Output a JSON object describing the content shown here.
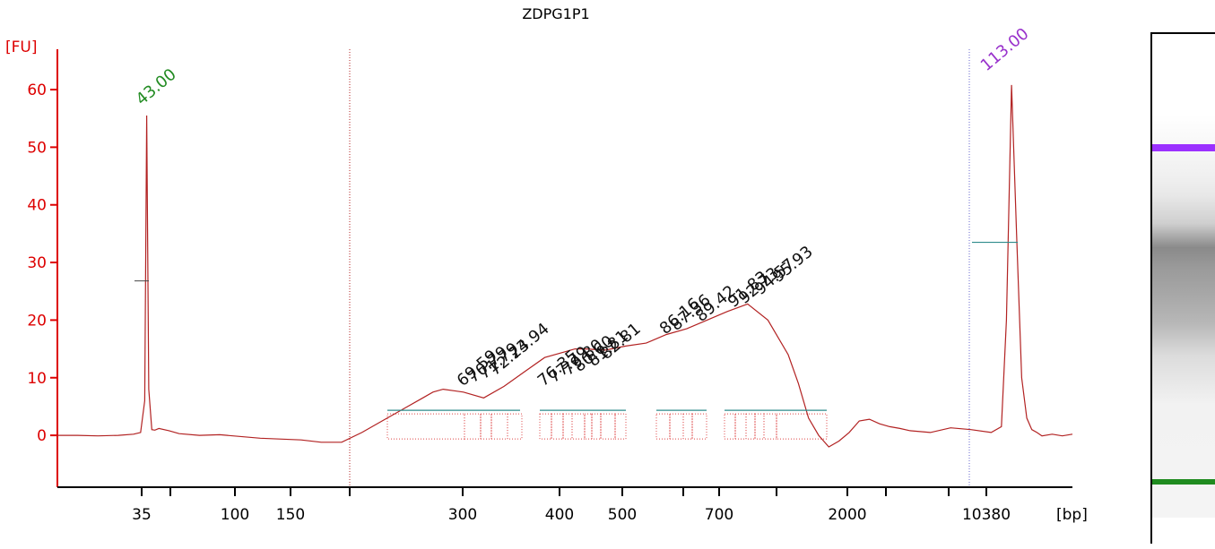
{
  "chart_data": {
    "type": "line",
    "title": "ZDPG1P1",
    "ylabel": "[FU]",
    "xlabel": "[bp]",
    "ylim": [
      -9,
      67
    ],
    "yticks": [
      0,
      10,
      20,
      30,
      40,
      50,
      60
    ],
    "xticks": [
      "35",
      "",
      "100",
      "150",
      "",
      "300",
      "400",
      "500",
      "",
      "700",
      "",
      "2000",
      "",
      "",
      "10380"
    ],
    "marker_labels": [
      {
        "text": "43.00",
        "color": "#228b22"
      },
      {
        "text": "113.00",
        "color": "#9932cc"
      }
    ],
    "peak_labels": [
      "69.59",
      "70.79",
      "71.79",
      "72.24",
      "73.94",
      "76.35",
      "77.79",
      "79.80",
      "80.60",
      "81.81",
      "82.81",
      "86.16",
      "87.36",
      "89.42",
      "91.83",
      "92.73",
      "94.57",
      "95.93"
    ],
    "series": [
      {
        "color": "#b22222",
        "x": [
          0.0,
          0.02,
          0.04,
          0.06,
          0.075,
          0.082,
          0.086,
          0.088,
          0.09,
          0.093,
          0.096,
          0.1,
          0.11,
          0.12,
          0.14,
          0.16,
          0.2,
          0.24,
          0.26,
          0.28,
          0.3,
          0.32,
          0.34,
          0.36,
          0.37,
          0.38,
          0.4,
          0.42,
          0.44,
          0.46,
          0.48,
          0.5,
          0.51,
          0.52,
          0.54,
          0.56,
          0.58,
          0.6,
          0.62,
          0.64,
          0.66,
          0.68,
          0.7,
          0.72,
          0.73,
          0.74,
          0.75,
          0.76,
          0.77,
          0.78,
          0.79,
          0.8,
          0.81,
          0.82,
          0.83,
          0.84,
          0.86,
          0.88,
          0.9,
          0.92,
          0.93,
          0.935,
          0.94,
          0.945,
          0.95,
          0.955,
          0.96,
          0.965,
          0.97,
          0.98,
          0.99,
          1.0
        ],
        "y": [
          0,
          0,
          -0.1,
          0,
          0.2,
          0.5,
          6,
          55.5,
          8,
          1.0,
          0.9,
          1.2,
          0.8,
          0.3,
          0,
          0.1,
          -0.5,
          -0.8,
          -1.2,
          -1.2,
          0.5,
          2.5,
          4.5,
          6.5,
          7.5,
          8,
          7.5,
          6.5,
          8.5,
          11,
          13.5,
          14.5,
          15,
          15,
          14.8,
          15.5,
          16,
          17.5,
          18.5,
          20,
          21.5,
          22.8,
          20,
          14,
          9,
          3,
          0,
          -2,
          -1,
          0.5,
          2.5,
          2.8,
          2,
          1.5,
          1.2,
          0.8,
          0.5,
          1.3,
          1.0,
          0.5,
          1.5,
          20,
          60.8,
          35,
          10,
          3,
          1,
          0.5,
          -0.1,
          0.2,
          -0.1,
          0.2
        ]
      }
    ],
    "grid": false
  }
}
